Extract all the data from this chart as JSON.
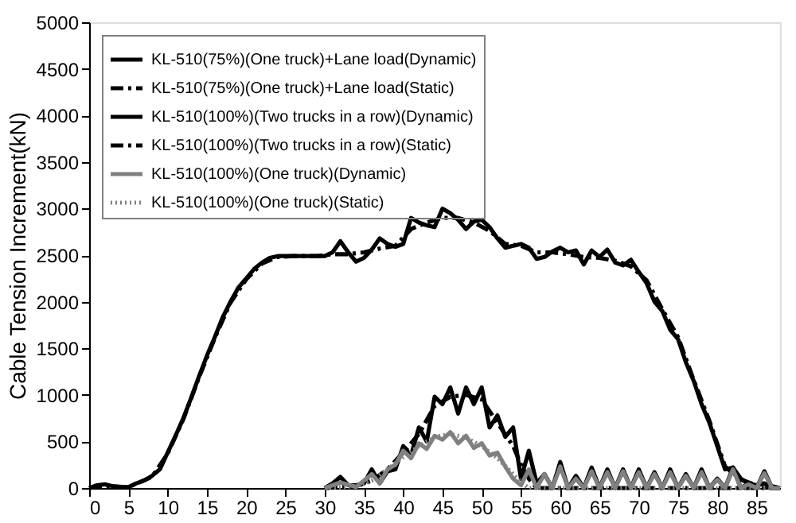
{
  "chart_data": {
    "type": "line",
    "ylabel": "Cable Tension Increment(kN)",
    "xlim": [
      0,
      88
    ],
    "xticks": [
      0,
      5,
      10,
      15,
      20,
      25,
      30,
      35,
      40,
      45,
      50,
      55,
      60,
      65,
      70,
      75,
      80,
      85
    ],
    "ylim": [
      0,
      5000
    ],
    "yticks": [
      0,
      500,
      1000,
      1500,
      2000,
      2500,
      3000,
      3500,
      4000,
      4500,
      5000
    ],
    "grid": false,
    "legend": "top left",
    "marker": "none",
    "series": [
      {
        "name": "KL-510(75%)(One truck)+Lane load(Dynamic)",
        "color": "#000000",
        "line_style": "solid",
        "x": [
          0,
          1,
          2,
          3,
          4,
          5,
          6,
          7,
          8,
          9,
          10,
          11,
          12,
          13,
          14,
          15,
          16,
          17,
          18,
          19,
          20,
          21,
          22,
          23,
          24,
          25,
          27,
          29,
          30,
          31,
          32,
          33,
          34,
          35,
          36,
          37,
          38,
          39,
          40,
          41,
          42,
          43,
          44,
          45,
          46,
          47,
          48,
          49,
          50,
          51,
          52,
          53,
          54,
          55,
          56,
          57,
          58,
          59,
          60,
          61,
          62,
          63,
          64,
          65,
          66,
          67,
          68,
          69,
          70,
          71,
          72,
          73,
          74,
          75,
          76,
          77,
          78,
          79,
          80,
          81,
          82,
          83,
          84,
          85,
          86,
          87,
          88
        ],
        "values": [
          0,
          30,
          40,
          20,
          10,
          10,
          50,
          80,
          130,
          200,
          380,
          560,
          750,
          970,
          1200,
          1420,
          1620,
          1830,
          2000,
          2150,
          2250,
          2350,
          2420,
          2470,
          2490,
          2490,
          2490,
          2490,
          2490,
          2530,
          2650,
          2530,
          2430,
          2470,
          2560,
          2680,
          2620,
          2590,
          2620,
          2900,
          2850,
          2820,
          2800,
          3000,
          2950,
          2880,
          2780,
          2860,
          2880,
          2800,
          2680,
          2580,
          2600,
          2620,
          2580,
          2460,
          2480,
          2540,
          2580,
          2530,
          2550,
          2400,
          2550,
          2480,
          2560,
          2420,
          2390,
          2450,
          2320,
          2200,
          2000,
          1900,
          1700,
          1600,
          1350,
          1150,
          900,
          700,
          450,
          200,
          220,
          100,
          50,
          30,
          50,
          20,
          0
        ]
      },
      {
        "name": "KL-510(75%)(One truck)+Lane load(Static)",
        "color": "#000000",
        "line_style": "dashdot",
        "x": [
          0,
          2,
          5,
          8,
          10,
          12,
          14,
          16,
          18,
          20,
          22,
          24,
          26,
          29,
          31,
          33,
          35,
          37,
          39,
          41,
          43,
          45,
          47,
          49,
          51,
          53,
          55,
          57,
          59,
          61,
          63,
          65,
          67,
          69,
          71,
          73,
          75,
          77,
          79,
          81,
          83,
          85,
          88
        ],
        "values": [
          0,
          20,
          10,
          120,
          370,
          740,
          1190,
          1610,
          1990,
          2240,
          2410,
          2480,
          2490,
          2490,
          2510,
          2510,
          2530,
          2570,
          2600,
          2780,
          2850,
          2900,
          2900,
          2850,
          2760,
          2620,
          2600,
          2530,
          2530,
          2510,
          2480,
          2470,
          2440,
          2380,
          2230,
          1920,
          1620,
          1160,
          720,
          230,
          90,
          30,
          0
        ]
      },
      {
        "name": "KL-510(100%)(Two trucks in a row)(Dynamic)",
        "color": "#000000",
        "line_style": "solid",
        "x": [
          30,
          31,
          32,
          33,
          34,
          35,
          36,
          37,
          38,
          39,
          40,
          41,
          42,
          43,
          44,
          45,
          46,
          47,
          48,
          49,
          50,
          51,
          52,
          53,
          54,
          55,
          56,
          57,
          58,
          59,
          60,
          61,
          62,
          63,
          64,
          65,
          66,
          67,
          68,
          69,
          70,
          71,
          72,
          73,
          74,
          75,
          76,
          77,
          78,
          79,
          80,
          81,
          82,
          83,
          84,
          85,
          86,
          87,
          88
        ],
        "values": [
          0,
          50,
          120,
          30,
          30,
          50,
          200,
          50,
          180,
          200,
          450,
          350,
          650,
          500,
          980,
          900,
          1080,
          800,
          1080,
          900,
          1080,
          650,
          780,
          550,
          650,
          100,
          400,
          50,
          150,
          0,
          280,
          0,
          130,
          0,
          220,
          0,
          200,
          0,
          200,
          0,
          200,
          0,
          170,
          0,
          200,
          0,
          150,
          0,
          200,
          0,
          100,
          0,
          220,
          0,
          50,
          0,
          180,
          0,
          0
        ]
      },
      {
        "name": "KL-510(100%)(Two trucks in a row)(Static)",
        "color": "#000000",
        "line_style": "dashdot",
        "x": [
          30,
          34,
          36,
          38,
          40,
          42,
          44,
          46,
          48,
          50,
          52,
          54,
          55,
          56,
          57,
          88
        ],
        "values": [
          0,
          20,
          80,
          200,
          380,
          580,
          880,
          980,
          1000,
          950,
          700,
          450,
          250,
          100,
          0,
          0
        ]
      },
      {
        "name": "KL-510(100%)(One truck)(Dynamic)",
        "color": "#808080",
        "line_style": "solid",
        "x": [
          30,
          32,
          34,
          36,
          37,
          38,
          39,
          40,
          41,
          42,
          43,
          44,
          45,
          46,
          47,
          48,
          49,
          50,
          51,
          52,
          53,
          54,
          55,
          56,
          57,
          58,
          59,
          60,
          61,
          62,
          63,
          64,
          65,
          66,
          67,
          68,
          69,
          70,
          71,
          72,
          73,
          74,
          75,
          76,
          77,
          78,
          79,
          80,
          81,
          82,
          83,
          84,
          85,
          86,
          87,
          88
        ],
        "values": [
          0,
          60,
          10,
          150,
          50,
          200,
          250,
          400,
          320,
          480,
          420,
          560,
          520,
          600,
          480,
          560,
          430,
          480,
          350,
          380,
          230,
          100,
          30,
          200,
          0,
          150,
          0,
          230,
          0,
          100,
          0,
          180,
          0,
          170,
          0,
          180,
          0,
          170,
          0,
          150,
          0,
          170,
          0,
          130,
          0,
          170,
          0,
          90,
          0,
          200,
          0,
          40,
          0,
          160,
          0,
          0
        ]
      },
      {
        "name": "KL-510(100%)(One truck)(Static)",
        "color": "#808080",
        "line_style": "dotted",
        "x": [
          30,
          34,
          36,
          38,
          40,
          42,
          44,
          46,
          48,
          50,
          52,
          54,
          55,
          56,
          88
        ],
        "values": [
          0,
          20,
          80,
          200,
          330,
          450,
          550,
          580,
          540,
          450,
          320,
          150,
          60,
          0,
          0
        ]
      }
    ]
  }
}
